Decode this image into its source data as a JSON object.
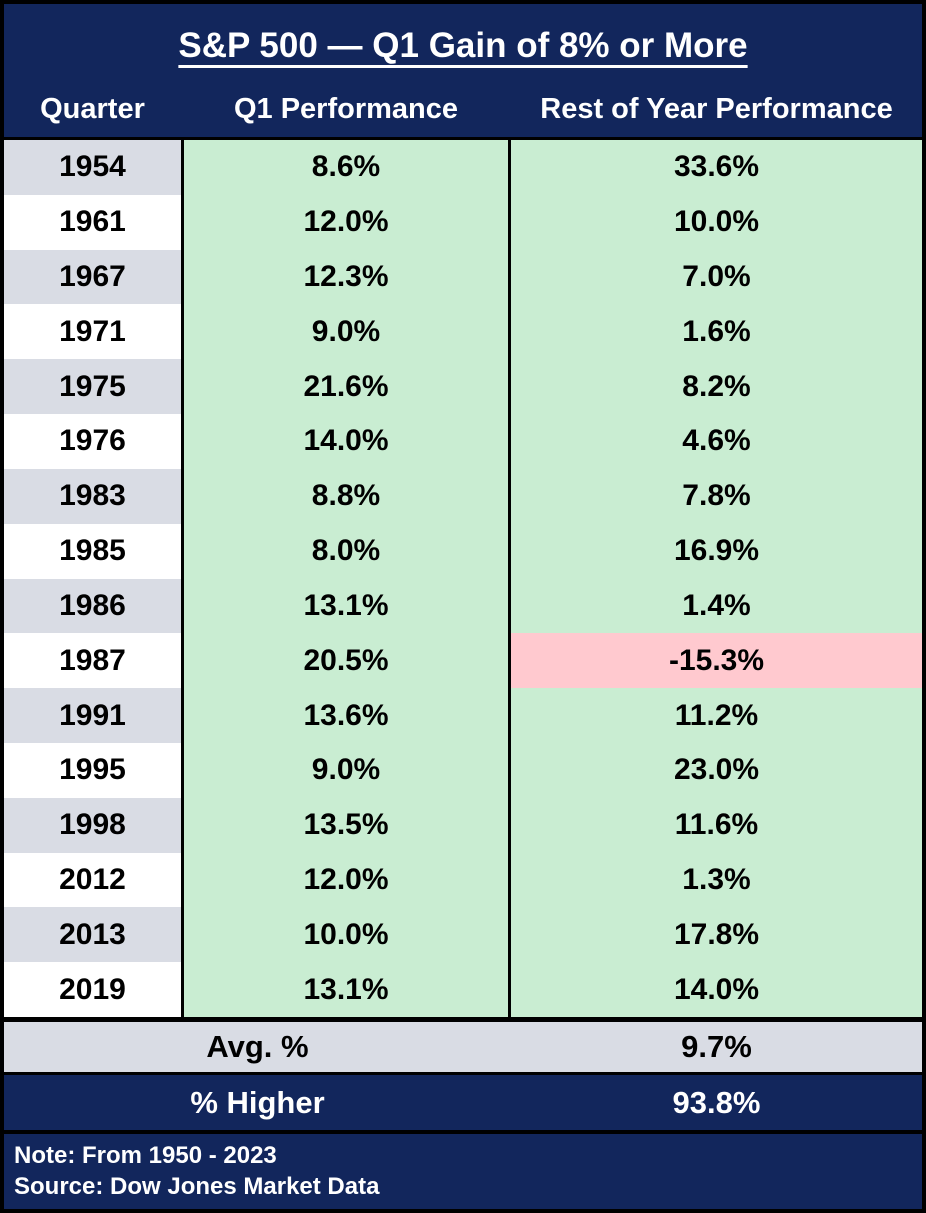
{
  "colors": {
    "navy": "#12265c",
    "row_alt_gray": "#d9dce4",
    "positive_green": "#c9edd2",
    "negative_pink": "#ffc9cf",
    "text_dark": "#000000",
    "text_light": "#ffffff"
  },
  "header": {
    "title": "S&P 500 — Q1 Gain of 8% or More",
    "columns": [
      "Quarter",
      "Q1 Performance",
      "Rest of Year Performance"
    ]
  },
  "table": {
    "rows": [
      {
        "year": "1954",
        "q1": "8.6%",
        "rest": "33.6%",
        "rest_negative": false
      },
      {
        "year": "1961",
        "q1": "12.0%",
        "rest": "10.0%",
        "rest_negative": false
      },
      {
        "year": "1967",
        "q1": "12.3%",
        "rest": "7.0%",
        "rest_negative": false
      },
      {
        "year": "1971",
        "q1": "9.0%",
        "rest": "1.6%",
        "rest_negative": false
      },
      {
        "year": "1975",
        "q1": "21.6%",
        "rest": "8.2%",
        "rest_negative": false
      },
      {
        "year": "1976",
        "q1": "14.0%",
        "rest": "4.6%",
        "rest_negative": false
      },
      {
        "year": "1983",
        "q1": "8.8%",
        "rest": "7.8%",
        "rest_negative": false
      },
      {
        "year": "1985",
        "q1": "8.0%",
        "rest": "16.9%",
        "rest_negative": false
      },
      {
        "year": "1986",
        "q1": "13.1%",
        "rest": "1.4%",
        "rest_negative": false
      },
      {
        "year": "1987",
        "q1": "20.5%",
        "rest": "-15.3%",
        "rest_negative": true
      },
      {
        "year": "1991",
        "q1": "13.6%",
        "rest": "11.2%",
        "rest_negative": false
      },
      {
        "year": "1995",
        "q1": "9.0%",
        "rest": "23.0%",
        "rest_negative": false
      },
      {
        "year": "1998",
        "q1": "13.5%",
        "rest": "11.6%",
        "rest_negative": false
      },
      {
        "year": "2012",
        "q1": "12.0%",
        "rest": "1.3%",
        "rest_negative": false
      },
      {
        "year": "2013",
        "q1": "10.0%",
        "rest": "17.8%",
        "rest_negative": false
      },
      {
        "year": "2019",
        "q1": "13.1%",
        "rest": "14.0%",
        "rest_negative": false
      }
    ]
  },
  "summary": {
    "avg_label": "Avg. %",
    "avg_value": "9.7%",
    "higher_label": "% Higher",
    "higher_value": "93.8%"
  },
  "footer": {
    "note": "Note: From 1950 - 2023",
    "source": "Source: Dow Jones Market Data"
  },
  "chart_data": {
    "type": "table",
    "title": "S&P 500 — Q1 Gain of 8% or More",
    "columns": [
      "Quarter",
      "Q1 Performance",
      "Rest of Year Performance"
    ],
    "rows": [
      [
        1954,
        8.6,
        33.6
      ],
      [
        1961,
        12.0,
        10.0
      ],
      [
        1967,
        12.3,
        7.0
      ],
      [
        1971,
        9.0,
        1.6
      ],
      [
        1975,
        21.6,
        8.2
      ],
      [
        1976,
        14.0,
        4.6
      ],
      [
        1983,
        8.8,
        7.8
      ],
      [
        1985,
        8.0,
        16.9
      ],
      [
        1986,
        13.1,
        1.4
      ],
      [
        1987,
        20.5,
        -15.3
      ],
      [
        1991,
        13.6,
        11.2
      ],
      [
        1995,
        9.0,
        23.0
      ],
      [
        1998,
        13.5,
        11.6
      ],
      [
        2012,
        12.0,
        1.3
      ],
      [
        2013,
        10.0,
        17.8
      ],
      [
        2019,
        13.1,
        14.0
      ]
    ],
    "summary": {
      "avg_rest_of_year_pct": 9.7,
      "pct_higher_rest_of_year": 93.8
    },
    "highlight_rule": "negative rest-of-year values shown on pink, positive on green",
    "note": "From 1950 - 2023",
    "source": "Dow Jones Market Data"
  }
}
